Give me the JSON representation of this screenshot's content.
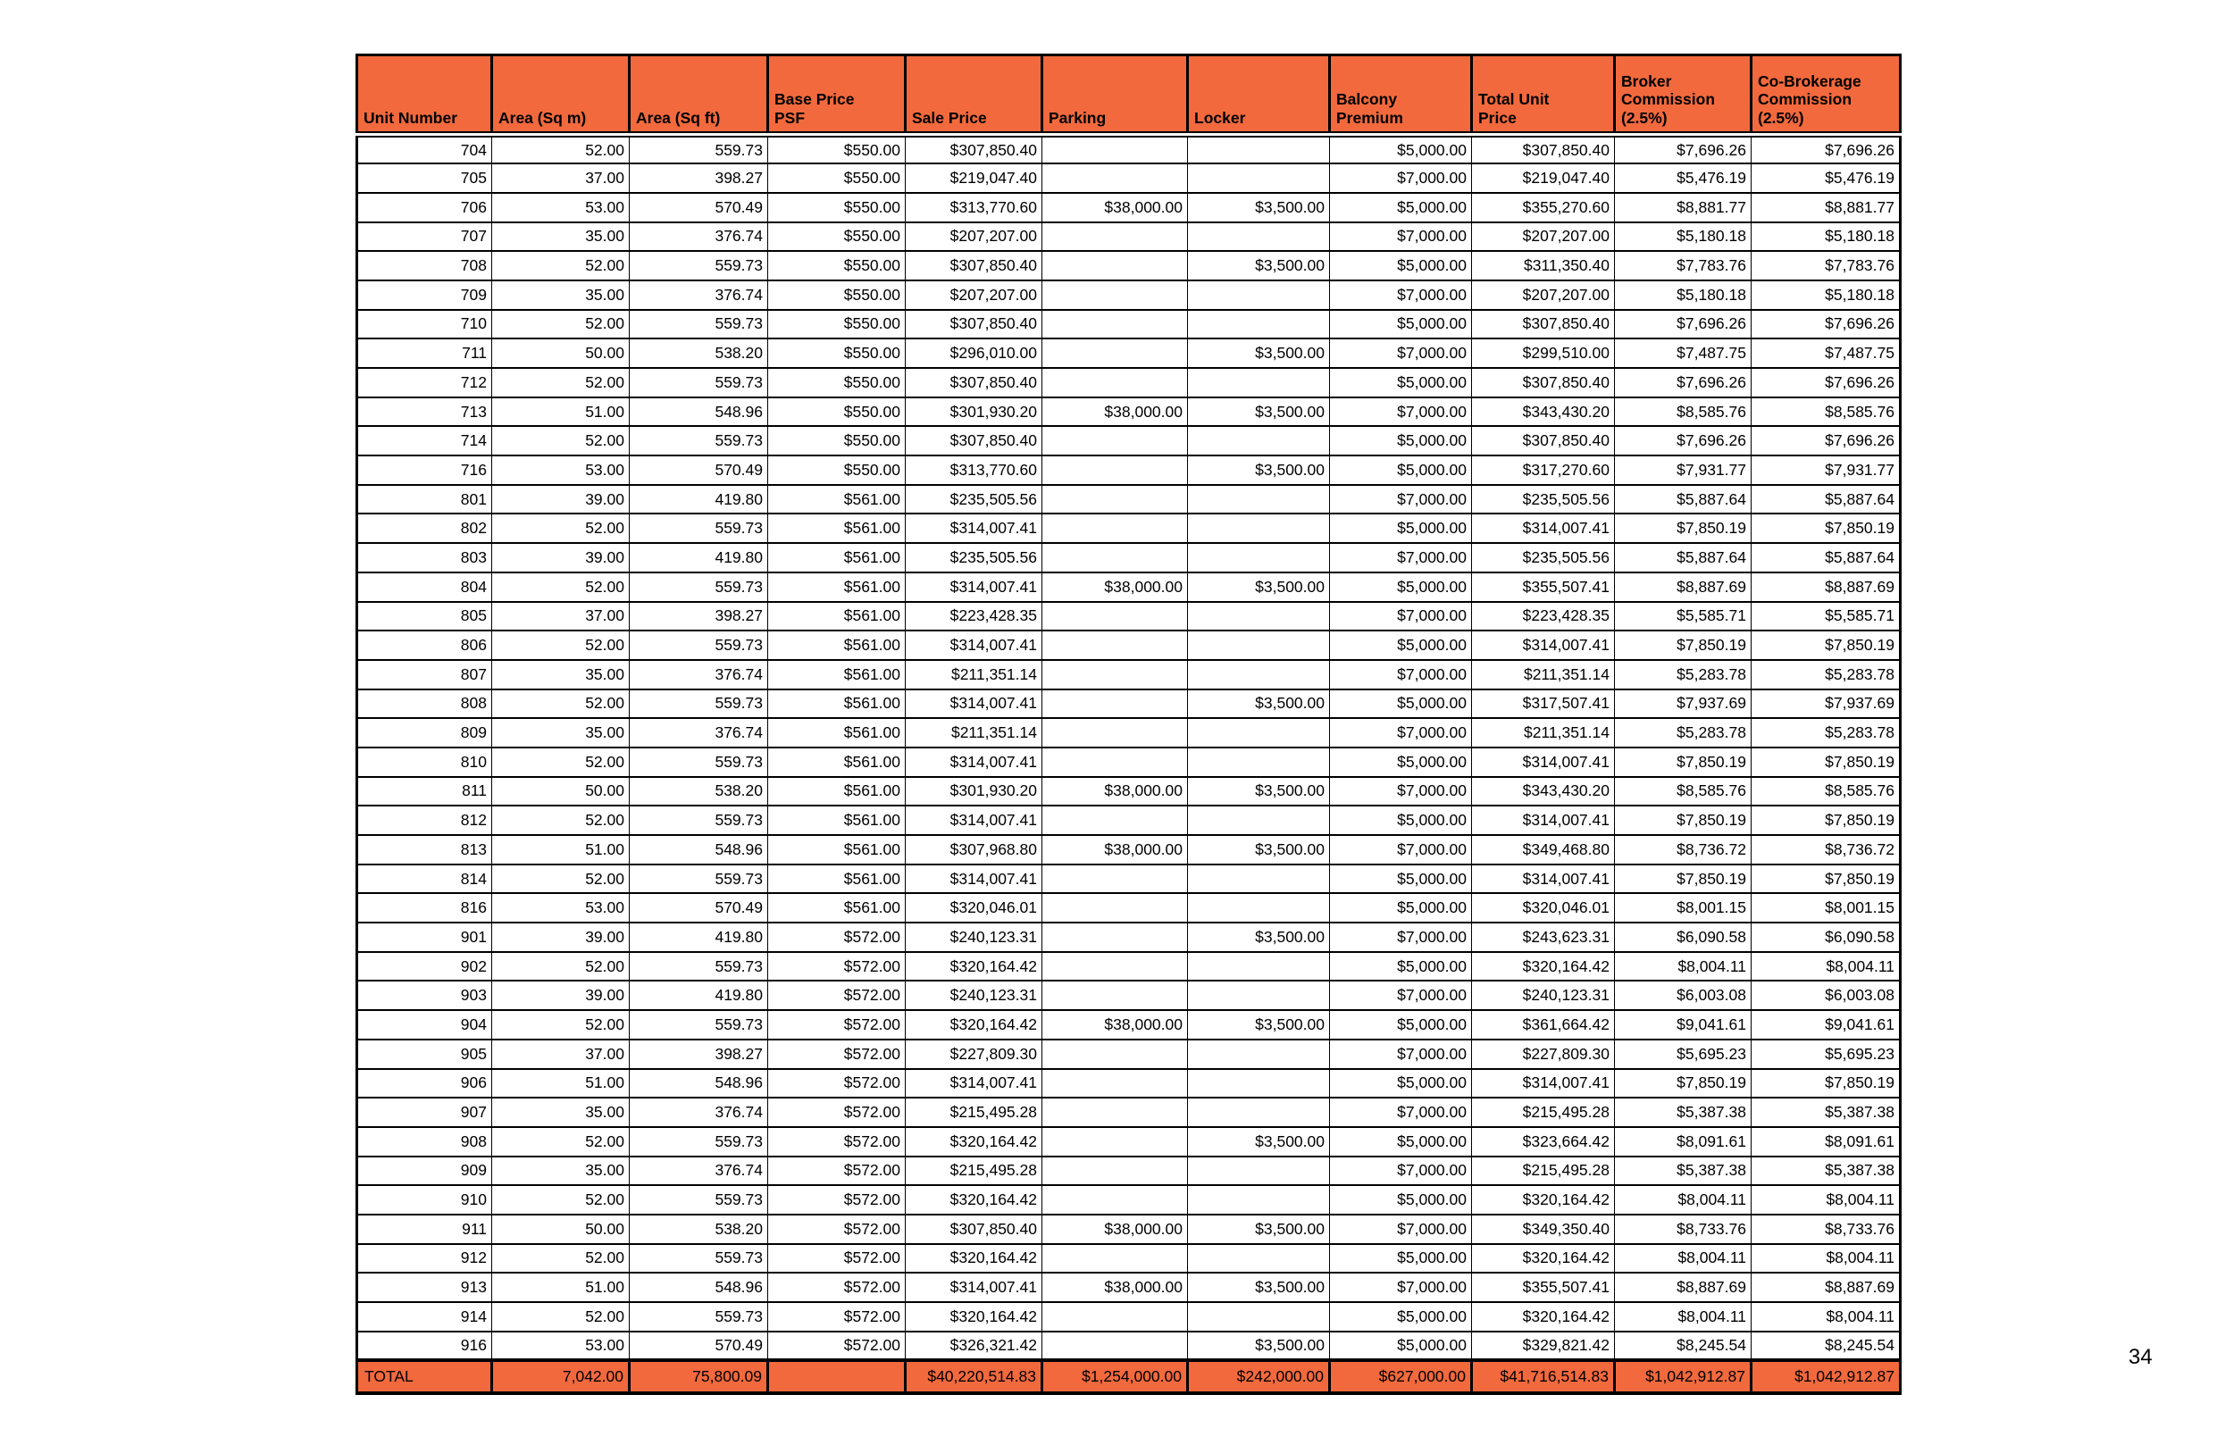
{
  "colors": {
    "header_fill": "#F2693D",
    "grid_line": "#000000",
    "text": "#000000",
    "page_background": "#FFFFFF"
  },
  "page": {
    "number": "34"
  },
  "table": {
    "columns": [
      {
        "key": "unit-number",
        "label": "Unit Number"
      },
      {
        "key": "area-sqm",
        "label": "Area (Sq m)"
      },
      {
        "key": "area-sqft",
        "label": "Area (Sq ft)"
      },
      {
        "key": "base-price-psf",
        "label": "Base Price\nPSF"
      },
      {
        "key": "sale-price",
        "label": "Sale Price"
      },
      {
        "key": "parking",
        "label": "Parking"
      },
      {
        "key": "locker",
        "label": "Locker"
      },
      {
        "key": "balcony-premium",
        "label": "Balcony\nPremium"
      },
      {
        "key": "total-unit-price",
        "label": "Total Unit\nPrice"
      },
      {
        "key": "broker-commission",
        "label": "Broker\nCommission\n(2.5%)"
      },
      {
        "key": "co-brokerage-commission",
        "label": "Co-Brokerage\nCommission\n(2.5%)"
      }
    ],
    "rows": [
      [
        "704",
        "52.00",
        "559.73",
        "$550.00",
        "$307,850.40",
        "",
        "",
        "$5,000.00",
        "$307,850.40",
        "$7,696.26",
        "$7,696.26"
      ],
      [
        "705",
        "37.00",
        "398.27",
        "$550.00",
        "$219,047.40",
        "",
        "",
        "$7,000.00",
        "$219,047.40",
        "$5,476.19",
        "$5,476.19"
      ],
      [
        "706",
        "53.00",
        "570.49",
        "$550.00",
        "$313,770.60",
        "$38,000.00",
        "$3,500.00",
        "$5,000.00",
        "$355,270.60",
        "$8,881.77",
        "$8,881.77"
      ],
      [
        "707",
        "35.00",
        "376.74",
        "$550.00",
        "$207,207.00",
        "",
        "",
        "$7,000.00",
        "$207,207.00",
        "$5,180.18",
        "$5,180.18"
      ],
      [
        "708",
        "52.00",
        "559.73",
        "$550.00",
        "$307,850.40",
        "",
        "$3,500.00",
        "$5,000.00",
        "$311,350.40",
        "$7,783.76",
        "$7,783.76"
      ],
      [
        "709",
        "35.00",
        "376.74",
        "$550.00",
        "$207,207.00",
        "",
        "",
        "$7,000.00",
        "$207,207.00",
        "$5,180.18",
        "$5,180.18"
      ],
      [
        "710",
        "52.00",
        "559.73",
        "$550.00",
        "$307,850.40",
        "",
        "",
        "$5,000.00",
        "$307,850.40",
        "$7,696.26",
        "$7,696.26"
      ],
      [
        "711",
        "50.00",
        "538.20",
        "$550.00",
        "$296,010.00",
        "",
        "$3,500.00",
        "$7,000.00",
        "$299,510.00",
        "$7,487.75",
        "$7,487.75"
      ],
      [
        "712",
        "52.00",
        "559.73",
        "$550.00",
        "$307,850.40",
        "",
        "",
        "$5,000.00",
        "$307,850.40",
        "$7,696.26",
        "$7,696.26"
      ],
      [
        "713",
        "51.00",
        "548.96",
        "$550.00",
        "$301,930.20",
        "$38,000.00",
        "$3,500.00",
        "$7,000.00",
        "$343,430.20",
        "$8,585.76",
        "$8,585.76"
      ],
      [
        "714",
        "52.00",
        "559.73",
        "$550.00",
        "$307,850.40",
        "",
        "",
        "$5,000.00",
        "$307,850.40",
        "$7,696.26",
        "$7,696.26"
      ],
      [
        "716",
        "53.00",
        "570.49",
        "$550.00",
        "$313,770.60",
        "",
        "$3,500.00",
        "$5,000.00",
        "$317,270.60",
        "$7,931.77",
        "$7,931.77"
      ],
      [
        "801",
        "39.00",
        "419.80",
        "$561.00",
        "$235,505.56",
        "",
        "",
        "$7,000.00",
        "$235,505.56",
        "$5,887.64",
        "$5,887.64"
      ],
      [
        "802",
        "52.00",
        "559.73",
        "$561.00",
        "$314,007.41",
        "",
        "",
        "$5,000.00",
        "$314,007.41",
        "$7,850.19",
        "$7,850.19"
      ],
      [
        "803",
        "39.00",
        "419.80",
        "$561.00",
        "$235,505.56",
        "",
        "",
        "$7,000.00",
        "$235,505.56",
        "$5,887.64",
        "$5,887.64"
      ],
      [
        "804",
        "52.00",
        "559.73",
        "$561.00",
        "$314,007.41",
        "$38,000.00",
        "$3,500.00",
        "$5,000.00",
        "$355,507.41",
        "$8,887.69",
        "$8,887.69"
      ],
      [
        "805",
        "37.00",
        "398.27",
        "$561.00",
        "$223,428.35",
        "",
        "",
        "$7,000.00",
        "$223,428.35",
        "$5,585.71",
        "$5,585.71"
      ],
      [
        "806",
        "52.00",
        "559.73",
        "$561.00",
        "$314,007.41",
        "",
        "",
        "$5,000.00",
        "$314,007.41",
        "$7,850.19",
        "$7,850.19"
      ],
      [
        "807",
        "35.00",
        "376.74",
        "$561.00",
        "$211,351.14",
        "",
        "",
        "$7,000.00",
        "$211,351.14",
        "$5,283.78",
        "$5,283.78"
      ],
      [
        "808",
        "52.00",
        "559.73",
        "$561.00",
        "$314,007.41",
        "",
        "$3,500.00",
        "$5,000.00",
        "$317,507.41",
        "$7,937.69",
        "$7,937.69"
      ],
      [
        "809",
        "35.00",
        "376.74",
        "$561.00",
        "$211,351.14",
        "",
        "",
        "$7,000.00",
        "$211,351.14",
        "$5,283.78",
        "$5,283.78"
      ],
      [
        "810",
        "52.00",
        "559.73",
        "$561.00",
        "$314,007.41",
        "",
        "",
        "$5,000.00",
        "$314,007.41",
        "$7,850.19",
        "$7,850.19"
      ],
      [
        "811",
        "50.00",
        "538.20",
        "$561.00",
        "$301,930.20",
        "$38,000.00",
        "$3,500.00",
        "$7,000.00",
        "$343,430.20",
        "$8,585.76",
        "$8,585.76"
      ],
      [
        "812",
        "52.00",
        "559.73",
        "$561.00",
        "$314,007.41",
        "",
        "",
        "$5,000.00",
        "$314,007.41",
        "$7,850.19",
        "$7,850.19"
      ],
      [
        "813",
        "51.00",
        "548.96",
        "$561.00",
        "$307,968.80",
        "$38,000.00",
        "$3,500.00",
        "$7,000.00",
        "$349,468.80",
        "$8,736.72",
        "$8,736.72"
      ],
      [
        "814",
        "52.00",
        "559.73",
        "$561.00",
        "$314,007.41",
        "",
        "",
        "$5,000.00",
        "$314,007.41",
        "$7,850.19",
        "$7,850.19"
      ],
      [
        "816",
        "53.00",
        "570.49",
        "$561.00",
        "$320,046.01",
        "",
        "",
        "$5,000.00",
        "$320,046.01",
        "$8,001.15",
        "$8,001.15"
      ],
      [
        "901",
        "39.00",
        "419.80",
        "$572.00",
        "$240,123.31",
        "",
        "$3,500.00",
        "$7,000.00",
        "$243,623.31",
        "$6,090.58",
        "$6,090.58"
      ],
      [
        "902",
        "52.00",
        "559.73",
        "$572.00",
        "$320,164.42",
        "",
        "",
        "$5,000.00",
        "$320,164.42",
        "$8,004.11",
        "$8,004.11"
      ],
      [
        "903",
        "39.00",
        "419.80",
        "$572.00",
        "$240,123.31",
        "",
        "",
        "$7,000.00",
        "$240,123.31",
        "$6,003.08",
        "$6,003.08"
      ],
      [
        "904",
        "52.00",
        "559.73",
        "$572.00",
        "$320,164.42",
        "$38,000.00",
        "$3,500.00",
        "$5,000.00",
        "$361,664.42",
        "$9,041.61",
        "$9,041.61"
      ],
      [
        "905",
        "37.00",
        "398.27",
        "$572.00",
        "$227,809.30",
        "",
        "",
        "$7,000.00",
        "$227,809.30",
        "$5,695.23",
        "$5,695.23"
      ],
      [
        "906",
        "51.00",
        "548.96",
        "$572.00",
        "$314,007.41",
        "",
        "",
        "$5,000.00",
        "$314,007.41",
        "$7,850.19",
        "$7,850.19"
      ],
      [
        "907",
        "35.00",
        "376.74",
        "$572.00",
        "$215,495.28",
        "",
        "",
        "$7,000.00",
        "$215,495.28",
        "$5,387.38",
        "$5,387.38"
      ],
      [
        "908",
        "52.00",
        "559.73",
        "$572.00",
        "$320,164.42",
        "",
        "$3,500.00",
        "$5,000.00",
        "$323,664.42",
        "$8,091.61",
        "$8,091.61"
      ],
      [
        "909",
        "35.00",
        "376.74",
        "$572.00",
        "$215,495.28",
        "",
        "",
        "$7,000.00",
        "$215,495.28",
        "$5,387.38",
        "$5,387.38"
      ],
      [
        "910",
        "52.00",
        "559.73",
        "$572.00",
        "$320,164.42",
        "",
        "",
        "$5,000.00",
        "$320,164.42",
        "$8,004.11",
        "$8,004.11"
      ],
      [
        "911",
        "50.00",
        "538.20",
        "$572.00",
        "$307,850.40",
        "$38,000.00",
        "$3,500.00",
        "$7,000.00",
        "$349,350.40",
        "$8,733.76",
        "$8,733.76"
      ],
      [
        "912",
        "52.00",
        "559.73",
        "$572.00",
        "$320,164.42",
        "",
        "",
        "$5,000.00",
        "$320,164.42",
        "$8,004.11",
        "$8,004.11"
      ],
      [
        "913",
        "51.00",
        "548.96",
        "$572.00",
        "$314,007.41",
        "$38,000.00",
        "$3,500.00",
        "$7,000.00",
        "$355,507.41",
        "$8,887.69",
        "$8,887.69"
      ],
      [
        "914",
        "52.00",
        "559.73",
        "$572.00",
        "$320,164.42",
        "",
        "",
        "$5,000.00",
        "$320,164.42",
        "$8,004.11",
        "$8,004.11"
      ],
      [
        "916",
        "53.00",
        "570.49",
        "$572.00",
        "$326,321.42",
        "",
        "$3,500.00",
        "$5,000.00",
        "$329,821.42",
        "$8,245.54",
        "$8,245.54"
      ]
    ],
    "total_row": [
      "TOTAL",
      "7,042.00",
      "75,800.09",
      "",
      "$40,220,514.83",
      "$1,254,000.00",
      "$242,000.00",
      "$627,000.00",
      "$41,716,514.83",
      "$1,042,912.87",
      "$1,042,912.87"
    ]
  }
}
